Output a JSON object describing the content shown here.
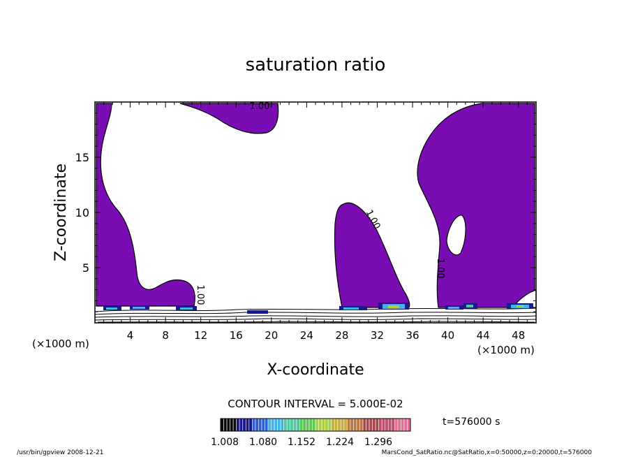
{
  "chart_data": {
    "type": "contour",
    "title": "saturation ratio",
    "xlabel": "X-coordinate",
    "ylabel": "Z-coordinate",
    "x_unit": "(×1000 m)",
    "z_unit": "(×1000 m)",
    "xlim": [
      0,
      50
    ],
    "ylim": [
      0,
      20
    ],
    "x_ticks": [
      4,
      8,
      12,
      16,
      20,
      24,
      28,
      32,
      36,
      40,
      44,
      48
    ],
    "y_ticks": [
      5,
      10,
      15
    ],
    "contour_interval_text": "CONTOUR INTERVAL = 5.000E-02",
    "time_label": "t=576000 s",
    "colorbar": {
      "tick_labels": [
        "1.008",
        "1.080",
        "1.152",
        "1.224",
        "1.296"
      ],
      "colors": [
        "#0a0a0a",
        "#1a1a8c",
        "#2f5fd6",
        "#3fb4e6",
        "#50c8a0",
        "#5fc850",
        "#a8d040",
        "#c8b040",
        "#b87848",
        "#a84848",
        "#c05070",
        "#e07090"
      ]
    },
    "contour_labels": [
      "1.00",
      "1.00",
      "1.00",
      "1.00"
    ],
    "shaded_color": "#7a0cb3",
    "regions": [
      {
        "name": "left-column",
        "x": [
          0.2,
          3.5
        ],
        "z": [
          0.5,
          19.8
        ]
      },
      {
        "name": "top-blob",
        "x": [
          9.5,
          20.5
        ],
        "z": [
          17.5,
          20
        ]
      },
      {
        "name": "left-low-bumps",
        "x": [
          3.5,
          11
        ],
        "z": [
          0.5,
          4
        ]
      },
      {
        "name": "middle-column",
        "x": [
          27,
          35
        ],
        "z": [
          0.5,
          10.7
        ]
      },
      {
        "name": "right-column",
        "x": [
          38,
          50
        ],
        "z": [
          0.5,
          20
        ]
      }
    ]
  },
  "footer": {
    "left": "/usr/bin/gpview   2008-12-21",
    "right": "MarsCond_SatRatio.nc@SatRatio,x=0:50000,z=0:20000,t=576000"
  }
}
